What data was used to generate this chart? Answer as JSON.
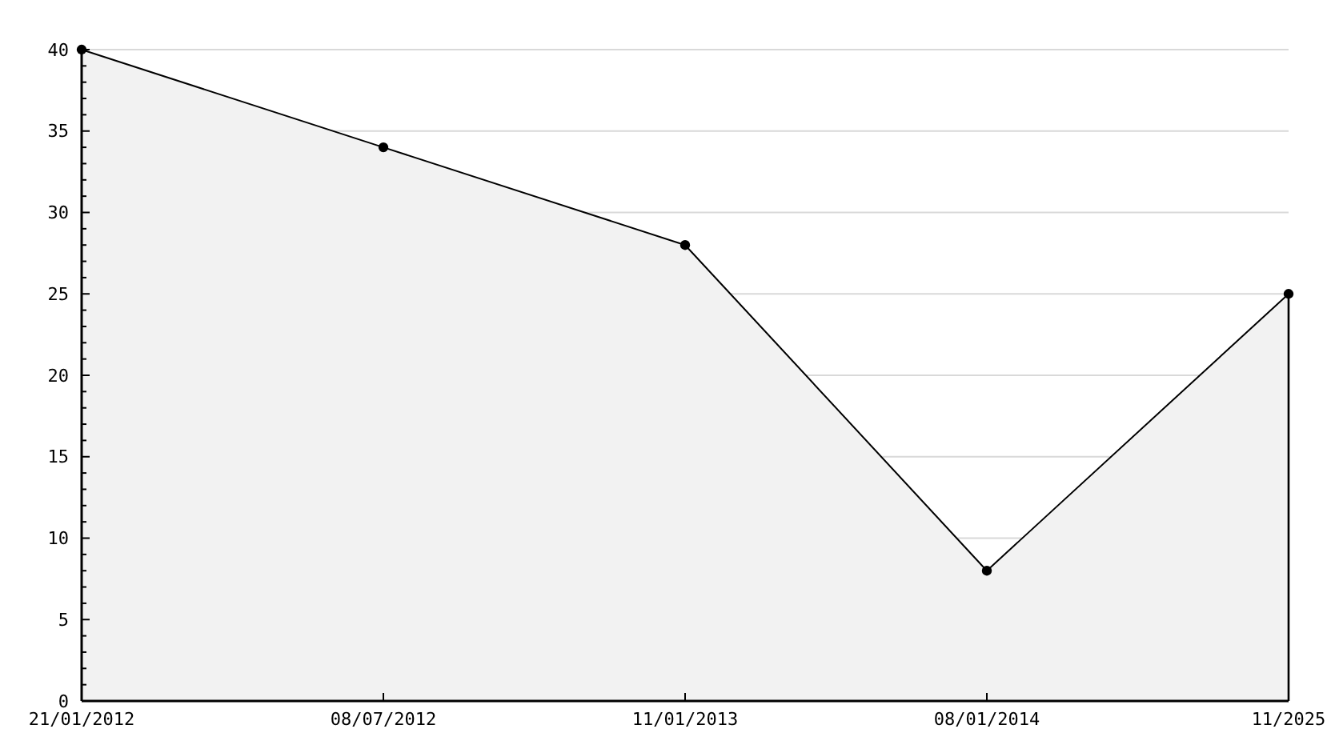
{
  "chart_data": {
    "type": "area",
    "categories": [
      "21/01/2012",
      "08/07/2012",
      "11/01/2013",
      "08/01/2014",
      "11/2025"
    ],
    "series": [
      {
        "color": "#000000",
        "values": [
          40,
          34,
          28,
          8,
          25
        ]
      }
    ],
    "ylim": [
      0,
      40
    ],
    "yticks": [
      0,
      {
        "value": 1,
        "label": null
      },
      {
        "value": 2,
        "label": null
      },
      {
        "value": 3,
        "label": null
      },
      {
        "value": 4,
        "label": null
      },
      5,
      {
        "value": 6,
        "label": null
      },
      {
        "value": 7,
        "label": null
      },
      {
        "value": 8,
        "label": null
      },
      {
        "value": 9,
        "label": null
      },
      10,
      {
        "value": 11,
        "label": null
      },
      {
        "value": 12,
        "label": null
      },
      {
        "value": 13,
        "label": null
      },
      {
        "value": 14,
        "label": null
      },
      15,
      {
        "value": 16,
        "label": null
      },
      {
        "value": 17,
        "label": null
      },
      {
        "value": 18,
        "label": null
      },
      {
        "value": 19,
        "label": null
      },
      20,
      {
        "value": 21,
        "label": null
      },
      {
        "value": 22,
        "label": null
      },
      {
        "value": 23,
        "label": null
      },
      {
        "value": 24,
        "label": null
      },
      25,
      {
        "value": 26,
        "label": null
      },
      {
        "value": 27,
        "label": null
      },
      {
        "value": 28,
        "label": null
      },
      {
        "value": 29,
        "label": null
      },
      30,
      {
        "value": 31,
        "label": null
      },
      {
        "value": 32,
        "label": null
      },
      {
        "value": 33,
        "label": null
      },
      {
        "value": 34,
        "label": null
      },
      35,
      {
        "value": 36,
        "label": null
      },
      {
        "value": 37,
        "label": null
      },
      {
        "value": 38,
        "label": null
      },
      {
        "value": 39,
        "label": null
      },
      40
    ],
    "grid": "y",
    "marker": "circle"
  }
}
